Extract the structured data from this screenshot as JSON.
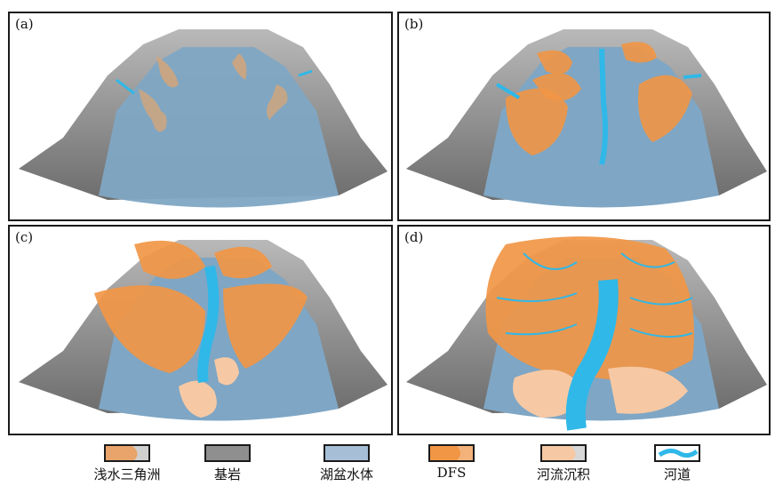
{
  "panels": [
    {
      "label": "(a)"
    },
    {
      "label": "(b)"
    },
    {
      "label": "(c)"
    },
    {
      "label": "(d)"
    }
  ],
  "legend": [
    {
      "label": "浅水三角洲",
      "key": "shallow-delta"
    },
    {
      "label": "基岩",
      "key": "bedrock"
    },
    {
      "label": "湖盆水体",
      "key": "lake-water"
    },
    {
      "label": "DFS",
      "key": "dfs"
    },
    {
      "label": "河流沉积",
      "key": "fluvial"
    },
    {
      "label": "河道",
      "key": "channel"
    }
  ],
  "colors": {
    "bedrock": "#8f8f8f",
    "lake": "#7fa6c4",
    "delta": "#e8a46a",
    "dfs": "#f19645",
    "fluvial": "#f6c9a4",
    "channel": "#2fb8e8"
  }
}
